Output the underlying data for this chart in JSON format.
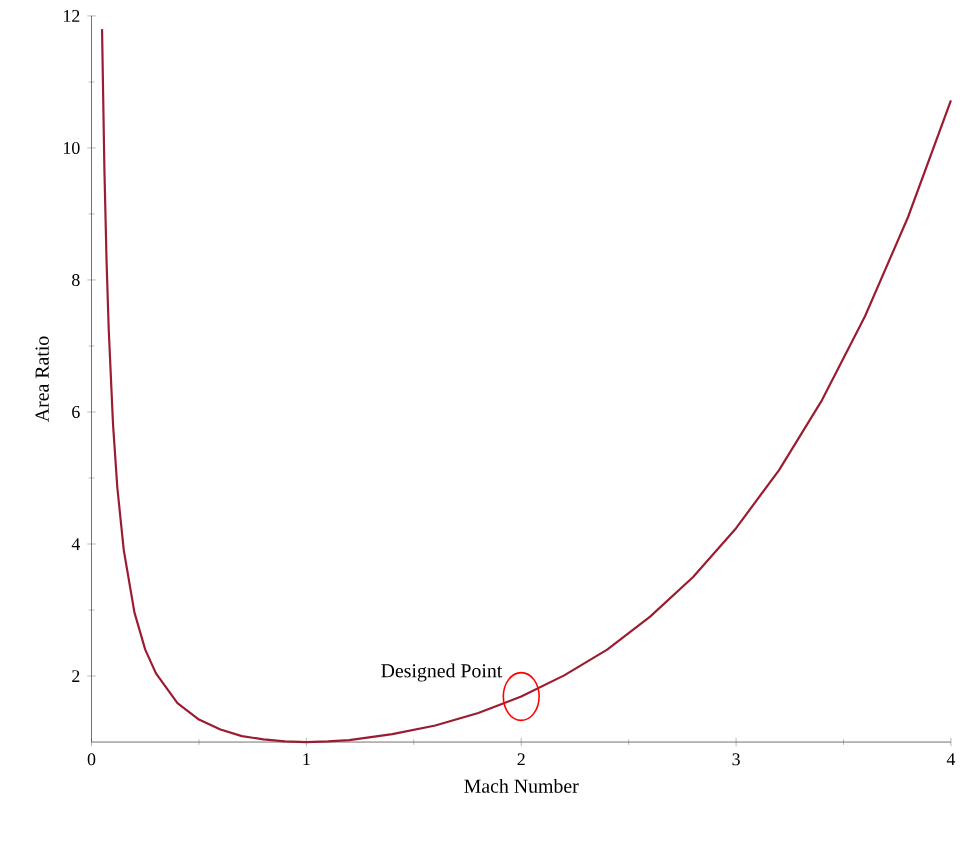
{
  "chart_data": {
    "type": "line",
    "xlabel": "Mach Number",
    "ylabel": "Area Ratio",
    "x": [
      0.049,
      0.06,
      0.07,
      0.08,
      0.1,
      0.12,
      0.15,
      0.2,
      0.25,
      0.3,
      0.4,
      0.5,
      0.6,
      0.7,
      0.8,
      0.9,
      1.0,
      1.1,
      1.2,
      1.4,
      1.6,
      1.8,
      2.0,
      2.2,
      2.4,
      2.6,
      2.8,
      3.0,
      3.2,
      3.4,
      3.6,
      3.8,
      4.0
    ],
    "series": [
      {
        "color": "#9b1b30",
        "values": [
          11.8,
          9.67,
          8.29,
          7.26,
          5.82,
          4.86,
          3.91,
          2.96,
          2.4,
          2.04,
          1.59,
          1.34,
          1.19,
          1.09,
          1.04,
          1.01,
          1.0,
          1.01,
          1.03,
          1.12,
          1.25,
          1.44,
          1.69,
          2.01,
          2.4,
          2.9,
          3.5,
          4.24,
          5.12,
          6.18,
          7.45,
          8.95,
          10.72
        ]
      }
    ],
    "xlim": [
      0,
      4
    ],
    "ylim": [
      1,
      12
    ],
    "xticks": [
      0,
      1,
      2,
      3,
      4
    ],
    "yticks": [
      2,
      4,
      6,
      8,
      10,
      12
    ],
    "annotations": [
      {
        "text": "Designed Point",
        "x": 2,
        "y": 1.69
      }
    ],
    "grid": false,
    "marker": "none",
    "line_style": "solid"
  }
}
